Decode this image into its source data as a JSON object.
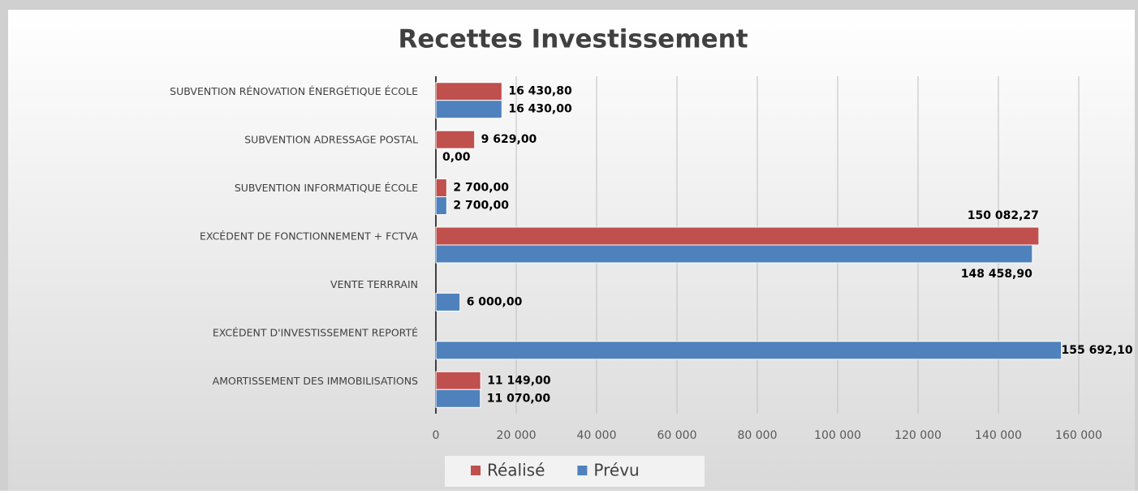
{
  "chart_data": {
    "type": "hbar",
    "title": "Recettes Investissement",
    "categories": [
      "SUBVENTION RÉNOVATION ÉNERGÉTIQUE ÉCOLE",
      "SUBVENTION ADRESSAGE POSTAL",
      "SUBVENTION INFORMATIQUE ÉCOLE",
      "EXCÉDENT DE FONCTIONNEMENT + FCTVA",
      "VENTE TERRRAIN",
      "EXCÉDENT D'INVESTISSEMENT REPORTÉ",
      "AMORTISSEMENT DES IMMOBILISATIONS"
    ],
    "series": [
      {
        "name": "Réalisé",
        "color": "#c0504d",
        "values": [
          16430.8,
          9629,
          2700,
          150082.27,
          null,
          null,
          11149
        ],
        "value_labels": [
          "16 430,80",
          "9 629,00",
          "2 700,00",
          "150 082,27",
          null,
          null,
          "11 149,00"
        ]
      },
      {
        "name": "Prévu",
        "color": "#4f81bd",
        "values": [
          16430,
          0,
          2700,
          148458.9,
          6000,
          155692.1,
          11070
        ],
        "value_labels": [
          "16 430,00",
          "0,00",
          "2 700,00",
          "148 458,90",
          "6 000,00",
          "155 692,10",
          "11 070,00"
        ]
      }
    ],
    "xlim": [
      0,
      160000
    ],
    "xticks": [
      0,
      {
        "value": 20000,
        "label": "20 000"
      },
      {
        "value": 40000,
        "label": "40 000"
      },
      {
        "value": 60000,
        "label": "60 000"
      },
      {
        "value": 80000,
        "label": "80 000"
      },
      {
        "value": 100000,
        "label": "100 000"
      },
      {
        "value": 120000,
        "label": "120 000"
      },
      {
        "value": 140000,
        "label": "140 000"
      },
      {
        "value": 160000,
        "label": "160 000"
      }
    ],
    "grid": true,
    "legend": "bottom"
  }
}
